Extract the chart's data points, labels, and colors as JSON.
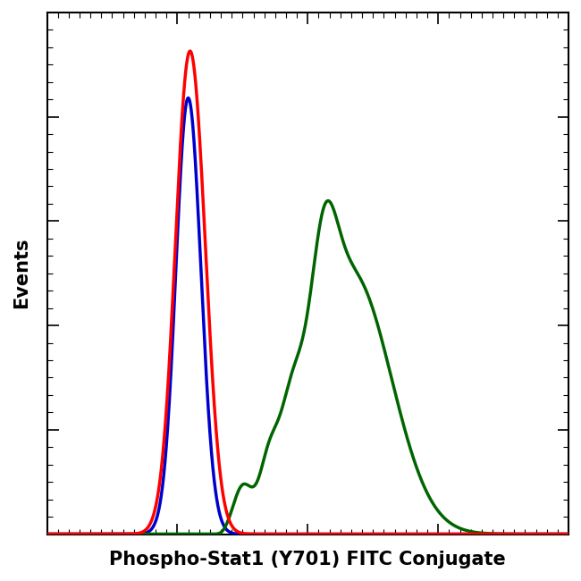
{
  "title": "",
  "xlabel": "Phospho-Stat1 (Y701) FITC Conjugate",
  "ylabel": "Events",
  "xlabel_fontsize": 15,
  "ylabel_fontsize": 15,
  "xlabel_fontweight": "bold",
  "ylabel_fontweight": "bold",
  "background_color": "#ffffff",
  "plot_bg_color": "#ffffff",
  "border_color": "#000000",
  "colors": {
    "red": "#ff0000",
    "blue": "#0000cd",
    "green": "#006400"
  },
  "xlim": [
    0,
    1
  ],
  "ylim": [
    0,
    1.08
  ],
  "linewidth": 2.5
}
